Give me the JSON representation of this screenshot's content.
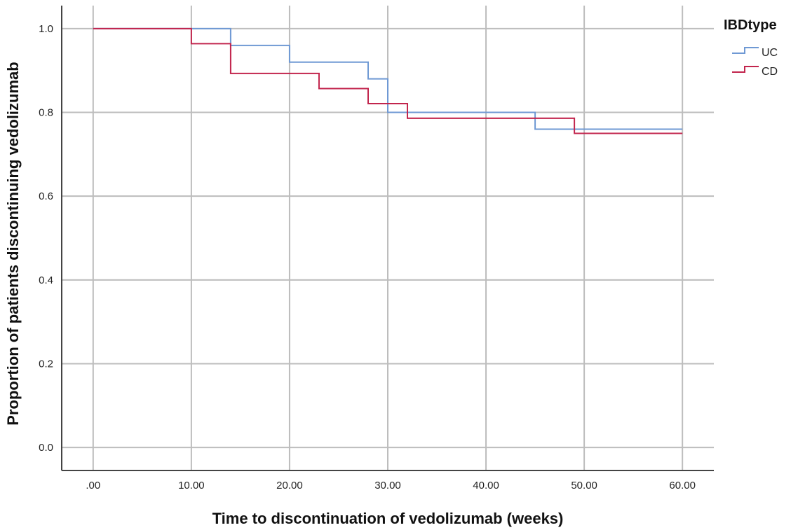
{
  "chart_data": {
    "type": "line",
    "xlabel": "Time to discontinuation of vedolizumab (weeks)",
    "ylabel": "Proportion of patients discontinuing vedolizumab",
    "xlim": [
      -3.2,
      63.2
    ],
    "ylim": [
      -0.055,
      1.055
    ],
    "x_ticks": [
      0,
      10,
      20,
      30,
      40,
      50,
      60
    ],
    "x_tick_labels": [
      ".00",
      "10.00",
      "20.00",
      "30.00",
      "40.00",
      "50.00",
      "60.00"
    ],
    "y_ticks": [
      0,
      0.2,
      0.4,
      0.6,
      0.8,
      1.0
    ],
    "y_tick_labels": [
      "0.0",
      "0.2",
      "0.4",
      "0.6",
      "0.8",
      "1.0"
    ],
    "grid": true,
    "legend": {
      "title": "IBDtype",
      "position": "top-right"
    },
    "series": [
      {
        "name": "UC",
        "color": "#6f99d4",
        "steps": [
          [
            0,
            1.0
          ],
          [
            14,
            0.96
          ],
          [
            20,
            0.92
          ],
          [
            28,
            0.88
          ],
          [
            30,
            0.8
          ],
          [
            45,
            0.76
          ],
          [
            60,
            0.76
          ]
        ]
      },
      {
        "name": "CD",
        "color": "#c2254d",
        "steps": [
          [
            0,
            1.0
          ],
          [
            10,
            0.964
          ],
          [
            14,
            0.893
          ],
          [
            23,
            0.857
          ],
          [
            28,
            0.821
          ],
          [
            32,
            0.786
          ],
          [
            49,
            0.75
          ],
          [
            60,
            0.75
          ]
        ]
      }
    ]
  }
}
